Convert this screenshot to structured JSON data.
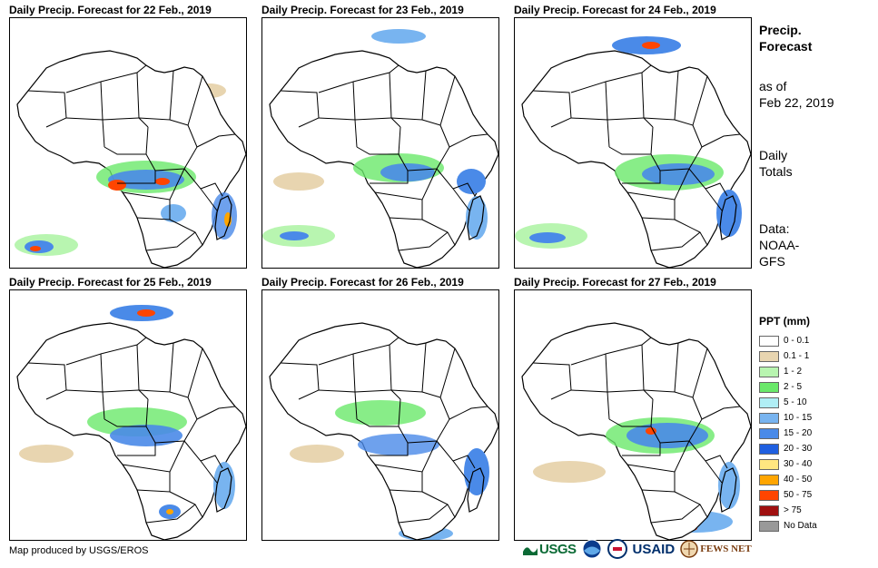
{
  "panels": [
    {
      "title": "Daily Precip. Forecast for 22 Feb., 2019"
    },
    {
      "title": "Daily Precip. Forecast for 23 Feb., 2019"
    },
    {
      "title": "Daily Precip. Forecast for 24 Feb., 2019"
    },
    {
      "title": "Daily Precip. Forecast for 25 Feb., 2019"
    },
    {
      "title": "Daily Precip. Forecast for 26 Feb., 2019"
    },
    {
      "title": "Daily Precip. Forecast for 27 Feb., 2019"
    }
  ],
  "info": {
    "heading_line1": "Precip.",
    "heading_line2": "Forecast",
    "asof_line1": "as of",
    "asof_line2": "Feb 22, 2019",
    "totals_line1": "Daily",
    "totals_line2": "Totals",
    "source_line1": "Data:",
    "source_line2": "NOAA-",
    "source_line3": "GFS"
  },
  "legend": {
    "title": "PPT (mm)",
    "items": [
      {
        "label": "0 - 0.1",
        "color": "#ffffff"
      },
      {
        "label": "0.1 - 1",
        "color": "#e8d5b0"
      },
      {
        "label": "1 - 2",
        "color": "#b8f5b0"
      },
      {
        "label": "2 - 5",
        "color": "#6ae86a"
      },
      {
        "label": "5 - 10",
        "color": "#b0eef5"
      },
      {
        "label": "10 - 15",
        "color": "#78b4f0"
      },
      {
        "label": "15 - 20",
        "color": "#4a8ae8"
      },
      {
        "label": "20 - 30",
        "color": "#1f5fe0"
      },
      {
        "label": "30 - 40",
        "color": "#ffe680"
      },
      {
        "label": "40 - 50",
        "color": "#ffa500"
      },
      {
        "label": "50 - 75",
        "color": "#ff4500"
      },
      {
        "label": "> 75",
        "color": "#a01010"
      },
      {
        "label": "No Data",
        "color": "#999999"
      }
    ]
  },
  "credit": "Map produced by USGS/EROS",
  "logos": {
    "usgs": "USGS",
    "usaid": "USAID",
    "fews": "FEWS NET"
  }
}
